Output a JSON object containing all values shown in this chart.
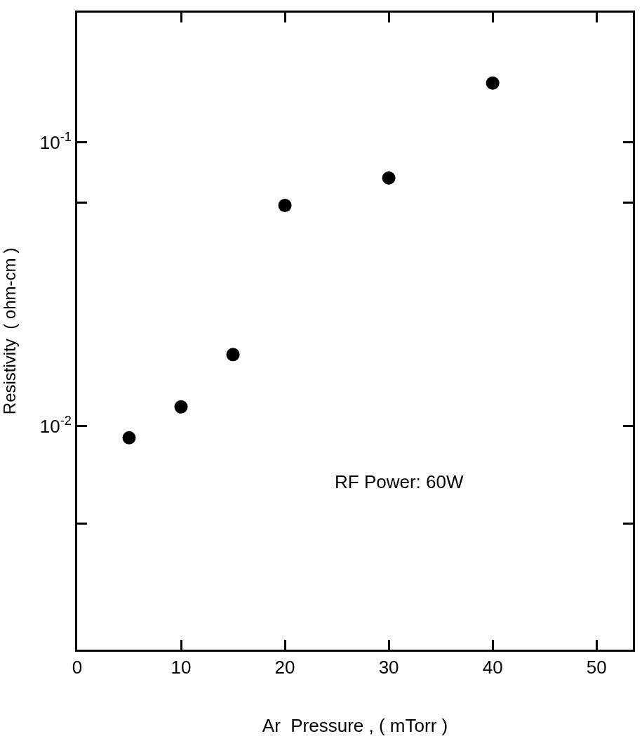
{
  "chart_data": {
    "type": "scatter",
    "xlabel": "Ar  Pressure , ( mTorr )",
    "ylabel": "Resistivity  ( ohm-cm )",
    "x": [
      5,
      10,
      15,
      20,
      30,
      40
    ],
    "series": [
      {
        "color": "#000000",
        "values": [
          0.0091,
          0.0117,
          0.0179,
          0.06,
          0.075,
          0.162
        ]
      }
    ],
    "log": "y",
    "marker": "circle",
    "xlim": [
      0,
      53.5
    ],
    "xticks": [
      0,
      10,
      20,
      30,
      40,
      50
    ],
    "ylim": [
      0.00163,
      0.287
    ],
    "yticks": [
      {
        "value": 0.1,
        "label": "10$^{-1}$"
      },
      {
        "value": 0.0614,
        "label": null
      },
      {
        "value": 0.01,
        "label": "10$^{-2}$"
      },
      {
        "value": 0.00454,
        "label": null
      }
    ],
    "annotations": [
      "RF Power: 60W"
    ]
  }
}
